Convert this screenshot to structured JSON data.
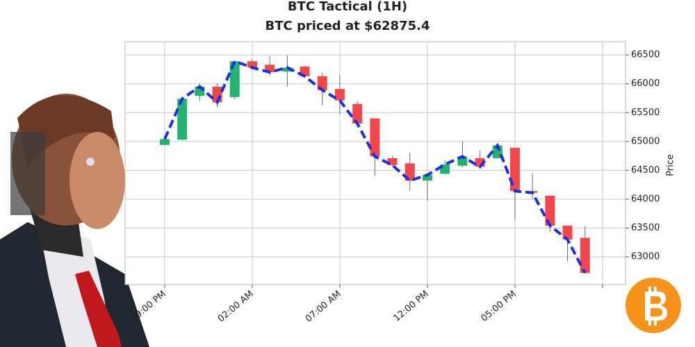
{
  "chart_data": {
    "type": "candlestick",
    "title": "BTC Tactical (1H)",
    "subtitle": "BTC priced at $62875.4",
    "title_color": "#111111",
    "subtitle_color": "#ee1c1c",
    "y_label": "Price",
    "y_axis_side": "right",
    "grid": true,
    "up_color": "#21b46e",
    "down_color": "#f2474a",
    "line": {
      "color": "#1a2ee6",
      "dashed": true
    },
    "x": [
      0,
      1,
      2,
      3,
      4,
      5,
      6,
      7,
      8,
      9,
      10,
      11,
      12,
      13,
      14,
      15,
      16,
      17,
      18,
      19,
      20,
      21,
      22,
      23,
      24
    ],
    "open": [
      64940,
      65030,
      65790,
      65950,
      65770,
      66390,
      66330,
      66210,
      66300,
      66130,
      65910,
      65650,
      65400,
      64710,
      64620,
      64320,
      64440,
      64580,
      64710,
      64710,
      64890,
      64140,
      64060,
      63540,
      63330
    ],
    "high": [
      65050,
      65760,
      66010,
      66010,
      66400,
      66420,
      66480,
      66490,
      66310,
      66190,
      66150,
      65700,
      65400,
      64750,
      64800,
      64420,
      64680,
      65000,
      64840,
      64960,
      64890,
      64450,
      64060,
      63540,
      63530
    ],
    "low": [
      64930,
      65020,
      65710,
      65590,
      65730,
      66250,
      66150,
      65950,
      66100,
      65620,
      65470,
      65290,
      64410,
      64560,
      64150,
      63970,
      64430,
      64550,
      64540,
      64700,
      63630,
      64000,
      63440,
      62920,
      62720
    ],
    "close": [
      65040,
      65740,
      65950,
      65680,
      66390,
      66280,
      66200,
      66280,
      66130,
      65890,
      65710,
      65310,
      64740,
      64590,
      64320,
      64420,
      64600,
      64740,
      64560,
      64930,
      64140,
      64110,
      63540,
      63300,
      62720
    ],
    "xlim": [
      -2.26,
      26.31
    ],
    "xticks": [
      {
        "value": 0,
        "label": "09:00 PM"
      },
      {
        "value": 5,
        "label": "02:00 AM"
      },
      {
        "value": 10,
        "label": "07:00 AM"
      },
      {
        "value": 15,
        "label": "12:00 PM"
      },
      {
        "value": 20,
        "label": "05:00 PM"
      },
      {
        "value": 25,
        "label": null
      }
    ],
    "ylim": [
      62520,
      66730
    ],
    "yticks": [
      63000,
      63500,
      64000,
      64500,
      65000,
      65500,
      66000,
      66500
    ]
  }
}
